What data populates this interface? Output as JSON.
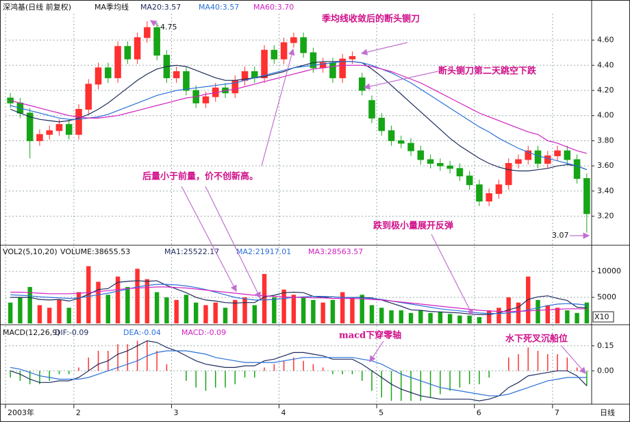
{
  "chart_data": [
    {
      "type": "candlestick",
      "title": "深鸿基(日线 前复权)",
      "subtitle": "MA季均线",
      "categories": [
        "2003年",
        null,
        null,
        null,
        null,
        null,
        null,
        "2",
        null,
        null,
        null,
        null,
        null,
        null,
        null,
        null,
        null,
        "3",
        null,
        null,
        null,
        null,
        null,
        null,
        null,
        null,
        null,
        null,
        "4",
        null,
        null,
        null,
        null,
        null,
        null,
        null,
        null,
        null,
        "5",
        null,
        null,
        null,
        null,
        null,
        null,
        null,
        null,
        null,
        "6",
        null,
        null,
        null,
        null,
        null,
        null,
        null,
        "7",
        null,
        null,
        null
      ],
      "x_unit_label": "日线",
      "open": [
        4.14,
        4.1,
        4.02,
        3.8,
        3.85,
        3.88,
        3.93,
        3.85,
        4.05,
        4.25,
        4.38,
        4.3,
        4.55,
        4.45,
        4.62,
        4.7,
        4.48,
        4.3,
        4.35,
        4.2,
        4.1,
        4.15,
        4.22,
        4.18,
        4.28,
        4.35,
        4.3,
        4.52,
        4.45,
        4.58,
        4.62,
        4.5,
        4.38,
        4.42,
        4.3,
        4.45,
        4.3,
        4.12,
        3.98,
        3.88,
        3.8,
        3.78,
        3.72,
        3.65,
        3.62,
        3.6,
        3.58,
        3.52,
        3.45,
        3.32,
        3.38,
        3.45,
        3.62,
        3.65,
        3.72,
        3.62,
        3.68,
        3.72,
        3.65,
        3.5
      ],
      "high": [
        4.18,
        4.14,
        4.06,
        3.89,
        3.92,
        3.97,
        3.97,
        4.09,
        4.29,
        4.42,
        4.42,
        4.59,
        4.59,
        4.66,
        4.75,
        4.74,
        4.52,
        4.39,
        4.39,
        4.24,
        4.19,
        4.26,
        4.26,
        4.32,
        4.39,
        4.39,
        4.56,
        4.56,
        4.62,
        4.66,
        4.66,
        4.54,
        4.46,
        4.46,
        4.49,
        4.51,
        4.34,
        4.16,
        4.02,
        3.92,
        3.84,
        3.82,
        3.76,
        3.69,
        3.66,
        3.64,
        3.62,
        3.56,
        3.49,
        3.42,
        3.49,
        3.66,
        3.69,
        3.76,
        3.76,
        3.72,
        3.76,
        3.76,
        3.69,
        3.54
      ],
      "low": [
        4.06,
        3.98,
        3.66,
        3.76,
        3.81,
        3.84,
        3.81,
        3.81,
        4.01,
        4.21,
        4.26,
        4.26,
        4.41,
        4.41,
        4.58,
        4.44,
        4.26,
        4.26,
        4.16,
        4.06,
        4.06,
        4.11,
        4.14,
        4.14,
        4.24,
        4.26,
        4.26,
        4.41,
        4.41,
        4.54,
        4.46,
        4.34,
        4.34,
        4.26,
        4.26,
        4.41,
        4.16,
        3.94,
        3.84,
        3.76,
        3.74,
        3.68,
        3.61,
        3.58,
        3.56,
        3.54,
        3.48,
        3.41,
        3.28,
        3.28,
        3.34,
        3.41,
        3.58,
        3.61,
        3.58,
        3.58,
        3.64,
        3.61,
        3.46,
        3.07
      ],
      "close": [
        4.1,
        4.02,
        3.8,
        3.85,
        3.88,
        3.93,
        3.85,
        4.05,
        4.25,
        4.38,
        4.3,
        4.55,
        4.45,
        4.62,
        4.7,
        4.48,
        4.3,
        4.35,
        4.2,
        4.1,
        4.15,
        4.22,
        4.18,
        4.28,
        4.35,
        4.3,
        4.52,
        4.45,
        4.58,
        4.62,
        4.5,
        4.38,
        4.42,
        4.3,
        4.45,
        4.47,
        4.2,
        3.98,
        3.88,
        3.8,
        3.78,
        3.72,
        3.65,
        3.62,
        3.6,
        3.58,
        3.52,
        3.45,
        3.32,
        3.38,
        3.45,
        3.62,
        3.65,
        3.72,
        3.62,
        3.68,
        3.72,
        3.65,
        3.5,
        3.22
      ],
      "up_color": "#ff3030",
      "down_color": "#16a516",
      "series": [
        {
          "name": "MA20:3.57",
          "color": "#1c2a5c",
          "values": [
            4.05,
            4.02,
            3.99,
            3.97,
            3.96,
            3.95,
            3.96,
            3.98,
            4.01,
            4.05,
            4.1,
            4.16,
            4.22,
            4.28,
            4.33,
            4.37,
            4.39,
            4.4,
            4.39,
            4.36,
            4.33,
            4.3,
            4.28,
            4.28,
            4.29,
            4.3,
            4.31,
            4.33,
            4.35,
            4.38,
            4.4,
            4.42,
            4.43,
            4.43,
            4.43,
            4.43,
            4.42,
            4.37,
            4.31,
            4.24,
            4.17,
            4.1,
            4.03,
            3.96,
            3.89,
            3.82,
            3.76,
            3.71,
            3.66,
            3.62,
            3.59,
            3.57,
            3.56,
            3.56,
            3.57,
            3.58,
            3.6,
            3.61,
            3.6,
            3.57
          ]
        },
        {
          "name": "MA40:3.57",
          "color": "#2a6fd6",
          "values": [
            4.08,
            4.06,
            4.04,
            4.02,
            4.0,
            3.98,
            3.97,
            3.97,
            3.98,
            3.99,
            4.01,
            4.04,
            4.07,
            4.1,
            4.13,
            4.16,
            4.18,
            4.2,
            4.21,
            4.22,
            4.23,
            4.24,
            4.25,
            4.26,
            4.28,
            4.3,
            4.32,
            4.34,
            4.36,
            4.38,
            4.39,
            4.4,
            4.41,
            4.42,
            4.43,
            4.43,
            4.42,
            4.4,
            4.37,
            4.34,
            4.3,
            4.26,
            4.21,
            4.16,
            4.11,
            4.06,
            4.01,
            3.96,
            3.91,
            3.87,
            3.82,
            3.78,
            3.74,
            3.71,
            3.68,
            3.66,
            3.64,
            3.62,
            3.6,
            3.57
          ]
        },
        {
          "name": "MA60:3.70",
          "color": "#d020c0",
          "values": [
            4.12,
            4.1,
            4.08,
            4.06,
            4.04,
            4.02,
            4.0,
            3.99,
            3.98,
            3.98,
            3.99,
            4.0,
            4.02,
            4.04,
            4.06,
            4.08,
            4.1,
            4.12,
            4.14,
            4.15,
            4.17,
            4.18,
            4.2,
            4.21,
            4.23,
            4.25,
            4.27,
            4.29,
            4.31,
            4.33,
            4.35,
            4.37,
            4.38,
            4.39,
            4.4,
            4.4,
            4.4,
            4.39,
            4.37,
            4.35,
            4.32,
            4.29,
            4.26,
            4.22,
            4.18,
            4.14,
            4.1,
            4.06,
            4.02,
            3.99,
            3.96,
            3.93,
            3.9,
            3.87,
            3.85,
            3.8,
            3.78,
            3.75,
            3.72,
            3.7
          ]
        }
      ],
      "ylim": [
        2.98,
        4.81
      ],
      "yticks": [
        {
          "value": 3.2,
          "label": "3.20"
        },
        {
          "value": 3.4,
          "label": "3.40"
        },
        {
          "value": 3.6,
          "label": "3.60"
        },
        {
          "value": 3.8,
          "label": "3.80"
        },
        {
          "value": 4.0,
          "label": "4.00"
        },
        {
          "value": 4.2,
          "label": "4.20"
        },
        {
          "value": 4.4,
          "label": "4.40"
        },
        {
          "value": 4.6,
          "label": "4.60"
        }
      ],
      "grid": true,
      "annotations": [
        "季均线收敛后的断头铡刀",
        "断头铡刀第二天跳空下跌",
        "后量小于前量，价不创新高。",
        "跌到极小量展开反弹",
        "macd下穿零轴",
        "水下死叉沉船位"
      ]
    },
    {
      "type": "bar",
      "title": "VOL2(5,10,20)",
      "subtitle": "VOLUME:38655.53",
      "unit_label": "X10",
      "values": [
        4000,
        5000,
        7000,
        3500,
        3000,
        4500,
        3000,
        6000,
        11000,
        8000,
        5500,
        9000,
        7000,
        10500,
        8500,
        6000,
        5000,
        4500,
        5500,
        4000,
        3500,
        4000,
        3000,
        4500,
        5000,
        3500,
        9500,
        5000,
        6500,
        5500,
        5000,
        4500,
        4000,
        4500,
        6000,
        5000,
        5500,
        3500,
        3000,
        2500,
        2500,
        2000,
        2500,
        2000,
        2200,
        1800,
        1500,
        1500,
        1200,
        2500,
        3000,
        5000,
        4000,
        9000,
        4500,
        3500,
        3000,
        2500,
        2000,
        4000
      ],
      "series": [
        {
          "name": "MA1:25522.17",
          "color": "#1c2a5c",
          "values": [
            5000,
            5000,
            5000,
            4600,
            4500,
            4600,
            4300,
            4800,
            5600,
            6500,
            6700,
            7900,
            8100,
            8200,
            8100,
            8200,
            7300,
            6600,
            5900,
            5000,
            4500,
            4300,
            4000,
            3900,
            4000,
            4000,
            5100,
            5400,
            5900,
            6000,
            5900,
            5200,
            5000,
            5100,
            5000,
            5000,
            5000,
            4900,
            4500,
            3900,
            3300,
            2600,
            2500,
            2300,
            2200,
            2100,
            2000,
            1800,
            1700,
            1700,
            2000,
            2600,
            3100,
            4600,
            5100,
            5300,
            4800,
            4400,
            3100,
            3000
          ]
        },
        {
          "name": "MA2:21917.01",
          "color": "#2a6fd6",
          "values": [
            5500,
            5400,
            5300,
            5100,
            5000,
            4900,
            4800,
            4900,
            5200,
            5500,
            5800,
            6200,
            6600,
            7000,
            7300,
            7500,
            7500,
            7400,
            7200,
            6900,
            6500,
            6000,
            5500,
            5000,
            4700,
            4500,
            4500,
            4600,
            4800,
            5000,
            5100,
            5200,
            5200,
            5100,
            5000,
            5000,
            4900,
            4800,
            4600,
            4300,
            4000,
            3700,
            3400,
            3100,
            2800,
            2600,
            2400,
            2200,
            2000,
            1900,
            1900,
            2000,
            2200,
            2600,
            3000,
            3400,
            3700,
            3800,
            3700,
            3500
          ]
        },
        {
          "name": "MA3:28563.57",
          "color": "#d020c0",
          "values": [
            6000,
            6000,
            5900,
            5800,
            5700,
            5700,
            5700,
            5800,
            5900,
            6100,
            6300,
            6500,
            6700,
            6800,
            6900,
            7000,
            7000,
            6900,
            6800,
            6600,
            6400,
            6200,
            6000,
            5800,
            5600,
            5400,
            5300,
            5200,
            5100,
            5000,
            5000,
            4900,
            4900,
            4800,
            4800,
            4800,
            4700,
            4600,
            4500,
            4300,
            4100,
            3900,
            3700,
            3500,
            3300,
            3100,
            2900,
            2700,
            2500,
            2400,
            2300,
            2300,
            2300,
            2400,
            2500,
            2600,
            2700,
            2800,
            2800,
            2800
          ]
        }
      ],
      "up_color": "#ff3030",
      "down_color": "#16a516",
      "ylim": [
        0,
        14500
      ],
      "yticks": [
        5000,
        10000
      ],
      "grid": true
    },
    {
      "type": "macd",
      "title": "MACD(12,26,9)",
      "series": [
        {
          "name": "DIF:-0.09",
          "color": "#1c2a5c",
          "values": [
            0.0,
            -0.02,
            -0.05,
            -0.07,
            -0.07,
            -0.06,
            -0.06,
            -0.04,
            0.0,
            0.04,
            0.06,
            0.1,
            0.12,
            0.15,
            0.18,
            0.17,
            0.14,
            0.12,
            0.09,
            0.06,
            0.04,
            0.03,
            0.02,
            0.02,
            0.03,
            0.03,
            0.06,
            0.07,
            0.09,
            0.11,
            0.11,
            0.1,
            0.09,
            0.07,
            0.07,
            0.07,
            0.04,
            0.0,
            -0.04,
            -0.08,
            -0.11,
            -0.13,
            -0.15,
            -0.16,
            -0.17,
            -0.17,
            -0.17,
            -0.17,
            -0.18,
            -0.17,
            -0.15,
            -0.1,
            -0.07,
            -0.03,
            -0.02,
            -0.01,
            0.0,
            0.0,
            -0.03,
            -0.09
          ]
        },
        {
          "name": "DEA:-0.04",
          "color": "#2a6fd6",
          "values": [
            0.02,
            0.01,
            -0.01,
            -0.03,
            -0.04,
            -0.05,
            -0.05,
            -0.05,
            -0.04,
            -0.02,
            0.0,
            0.02,
            0.04,
            0.06,
            0.09,
            0.11,
            0.12,
            0.12,
            0.12,
            0.11,
            0.1,
            0.08,
            0.07,
            0.06,
            0.05,
            0.05,
            0.05,
            0.05,
            0.06,
            0.07,
            0.08,
            0.08,
            0.08,
            0.08,
            0.08,
            0.08,
            0.07,
            0.06,
            0.04,
            0.01,
            -0.02,
            -0.04,
            -0.06,
            -0.08,
            -0.1,
            -0.11,
            -0.12,
            -0.13,
            -0.14,
            -0.15,
            -0.15,
            -0.14,
            -0.12,
            -0.1,
            -0.08,
            -0.06,
            -0.05,
            -0.04,
            -0.04,
            -0.04
          ]
        },
        {
          "name": "MACD:-0.09",
          "color": "#d020c0",
          "bars": true,
          "values": [
            -0.04,
            -0.06,
            -0.08,
            -0.08,
            -0.06,
            -0.02,
            -0.02,
            0.02,
            0.08,
            0.12,
            0.12,
            0.16,
            0.16,
            0.18,
            0.18,
            0.12,
            0.04,
            0,
            -0.06,
            -0.1,
            -0.12,
            -0.1,
            -0.1,
            -0.08,
            -0.04,
            -0.04,
            0.02,
            0.04,
            0.06,
            0.08,
            0.06,
            0.04,
            0.02,
            -0.02,
            -0.02,
            -0.02,
            -0.06,
            -0.12,
            -0.16,
            -0.18,
            -0.18,
            -0.18,
            -0.18,
            -0.16,
            -0.14,
            -0.12,
            -0.1,
            -0.08,
            -0.08,
            -0.04,
            0.0,
            0.08,
            0.1,
            0.14,
            0.12,
            0.1,
            0.1,
            0.08,
            0.02,
            -0.09
          ]
        }
      ],
      "up_color": "#ff3030",
      "down_color": "#16a516",
      "ylim": [
        -0.2,
        0.26
      ],
      "yticks": [
        {
          "value": 0,
          "label": "0.00"
        },
        0.15
      ],
      "grid": true
    }
  ]
}
